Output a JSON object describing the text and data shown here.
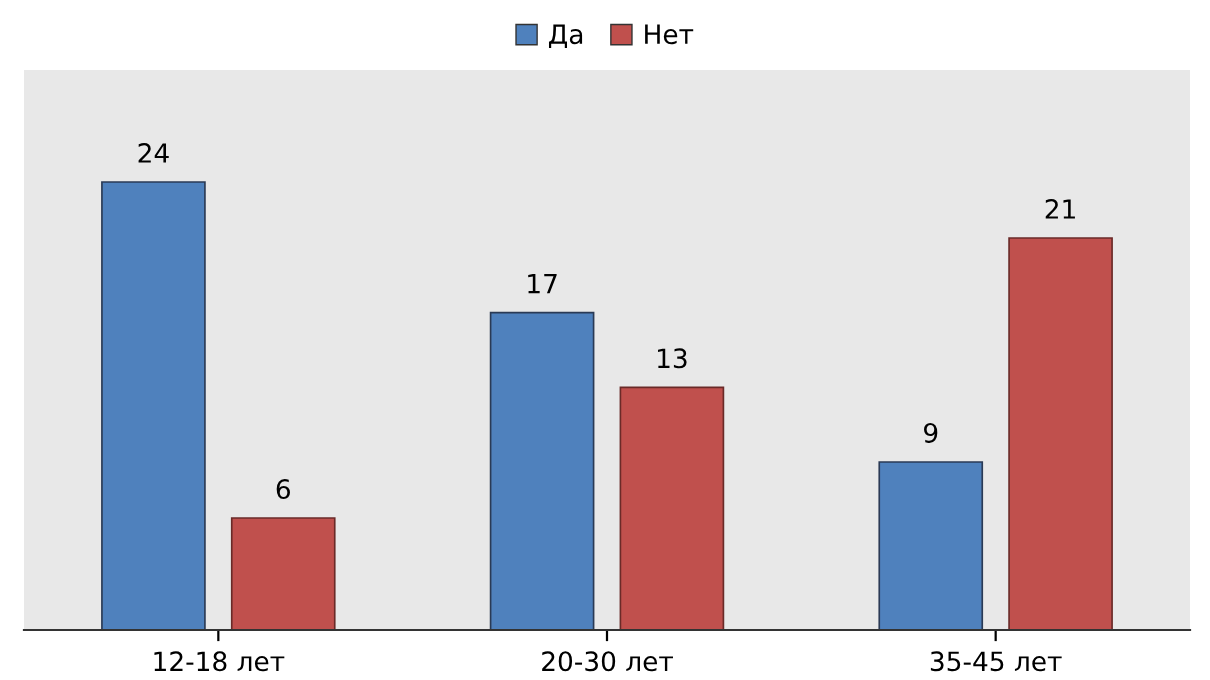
{
  "chart_data": {
    "type": "bar",
    "categories": [
      "12-18 лет",
      "20-30 лет",
      "35-45 лет"
    ],
    "series": [
      {
        "name": "Да",
        "color": "#4f81bd",
        "values": [
          24,
          17,
          9
        ]
      },
      {
        "name": "Нет",
        "color": "#c0504d",
        "values": [
          6,
          13,
          21
        ]
      }
    ],
    "ylim": [
      0,
      30
    ],
    "data_labels": true,
    "legend": "top",
    "grid": false,
    "tick_labels": "x"
  }
}
